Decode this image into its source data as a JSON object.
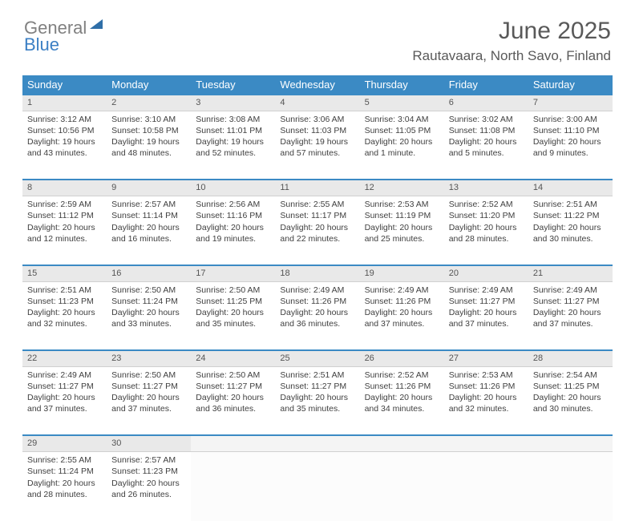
{
  "logo": {
    "text1": "General",
    "text2": "Blue"
  },
  "title": "June 2025",
  "subtitle": "Rautavaara, North Savo, Finland",
  "colors": {
    "header_bg": "#3b8ac4",
    "header_text": "#ffffff",
    "daynum_bg": "#e9e9e9",
    "accent_line": "#3b8ac4",
    "logo_gray": "#808080",
    "logo_blue": "#3b7fc4"
  },
  "day_headers": [
    "Sunday",
    "Monday",
    "Tuesday",
    "Wednesday",
    "Thursday",
    "Friday",
    "Saturday"
  ],
  "weeks": [
    [
      {
        "n": "1",
        "sunrise": "3:12 AM",
        "sunset": "10:56 PM",
        "daylight": "19 hours and 43 minutes."
      },
      {
        "n": "2",
        "sunrise": "3:10 AM",
        "sunset": "10:58 PM",
        "daylight": "19 hours and 48 minutes."
      },
      {
        "n": "3",
        "sunrise": "3:08 AM",
        "sunset": "11:01 PM",
        "daylight": "19 hours and 52 minutes."
      },
      {
        "n": "4",
        "sunrise": "3:06 AM",
        "sunset": "11:03 PM",
        "daylight": "19 hours and 57 minutes."
      },
      {
        "n": "5",
        "sunrise": "3:04 AM",
        "sunset": "11:05 PM",
        "daylight": "20 hours and 1 minute."
      },
      {
        "n": "6",
        "sunrise": "3:02 AM",
        "sunset": "11:08 PM",
        "daylight": "20 hours and 5 minutes."
      },
      {
        "n": "7",
        "sunrise": "3:00 AM",
        "sunset": "11:10 PM",
        "daylight": "20 hours and 9 minutes."
      }
    ],
    [
      {
        "n": "8",
        "sunrise": "2:59 AM",
        "sunset": "11:12 PM",
        "daylight": "20 hours and 12 minutes."
      },
      {
        "n": "9",
        "sunrise": "2:57 AM",
        "sunset": "11:14 PM",
        "daylight": "20 hours and 16 minutes."
      },
      {
        "n": "10",
        "sunrise": "2:56 AM",
        "sunset": "11:16 PM",
        "daylight": "20 hours and 19 minutes."
      },
      {
        "n": "11",
        "sunrise": "2:55 AM",
        "sunset": "11:17 PM",
        "daylight": "20 hours and 22 minutes."
      },
      {
        "n": "12",
        "sunrise": "2:53 AM",
        "sunset": "11:19 PM",
        "daylight": "20 hours and 25 minutes."
      },
      {
        "n": "13",
        "sunrise": "2:52 AM",
        "sunset": "11:20 PM",
        "daylight": "20 hours and 28 minutes."
      },
      {
        "n": "14",
        "sunrise": "2:51 AM",
        "sunset": "11:22 PM",
        "daylight": "20 hours and 30 minutes."
      }
    ],
    [
      {
        "n": "15",
        "sunrise": "2:51 AM",
        "sunset": "11:23 PM",
        "daylight": "20 hours and 32 minutes."
      },
      {
        "n": "16",
        "sunrise": "2:50 AM",
        "sunset": "11:24 PM",
        "daylight": "20 hours and 33 minutes."
      },
      {
        "n": "17",
        "sunrise": "2:50 AM",
        "sunset": "11:25 PM",
        "daylight": "20 hours and 35 minutes."
      },
      {
        "n": "18",
        "sunrise": "2:49 AM",
        "sunset": "11:26 PM",
        "daylight": "20 hours and 36 minutes."
      },
      {
        "n": "19",
        "sunrise": "2:49 AM",
        "sunset": "11:26 PM",
        "daylight": "20 hours and 37 minutes."
      },
      {
        "n": "20",
        "sunrise": "2:49 AM",
        "sunset": "11:27 PM",
        "daylight": "20 hours and 37 minutes."
      },
      {
        "n": "21",
        "sunrise": "2:49 AM",
        "sunset": "11:27 PM",
        "daylight": "20 hours and 37 minutes."
      }
    ],
    [
      {
        "n": "22",
        "sunrise": "2:49 AM",
        "sunset": "11:27 PM",
        "daylight": "20 hours and 37 minutes."
      },
      {
        "n": "23",
        "sunrise": "2:50 AM",
        "sunset": "11:27 PM",
        "daylight": "20 hours and 37 minutes."
      },
      {
        "n": "24",
        "sunrise": "2:50 AM",
        "sunset": "11:27 PM",
        "daylight": "20 hours and 36 minutes."
      },
      {
        "n": "25",
        "sunrise": "2:51 AM",
        "sunset": "11:27 PM",
        "daylight": "20 hours and 35 minutes."
      },
      {
        "n": "26",
        "sunrise": "2:52 AM",
        "sunset": "11:26 PM",
        "daylight": "20 hours and 34 minutes."
      },
      {
        "n": "27",
        "sunrise": "2:53 AM",
        "sunset": "11:26 PM",
        "daylight": "20 hours and 32 minutes."
      },
      {
        "n": "28",
        "sunrise": "2:54 AM",
        "sunset": "11:25 PM",
        "daylight": "20 hours and 30 minutes."
      }
    ],
    [
      {
        "n": "29",
        "sunrise": "2:55 AM",
        "sunset": "11:24 PM",
        "daylight": "20 hours and 28 minutes."
      },
      {
        "n": "30",
        "sunrise": "2:57 AM",
        "sunset": "11:23 PM",
        "daylight": "20 hours and 26 minutes."
      },
      null,
      null,
      null,
      null,
      null
    ]
  ],
  "labels": {
    "sunrise": "Sunrise: ",
    "sunset": "Sunset: ",
    "daylight": "Daylight: "
  }
}
